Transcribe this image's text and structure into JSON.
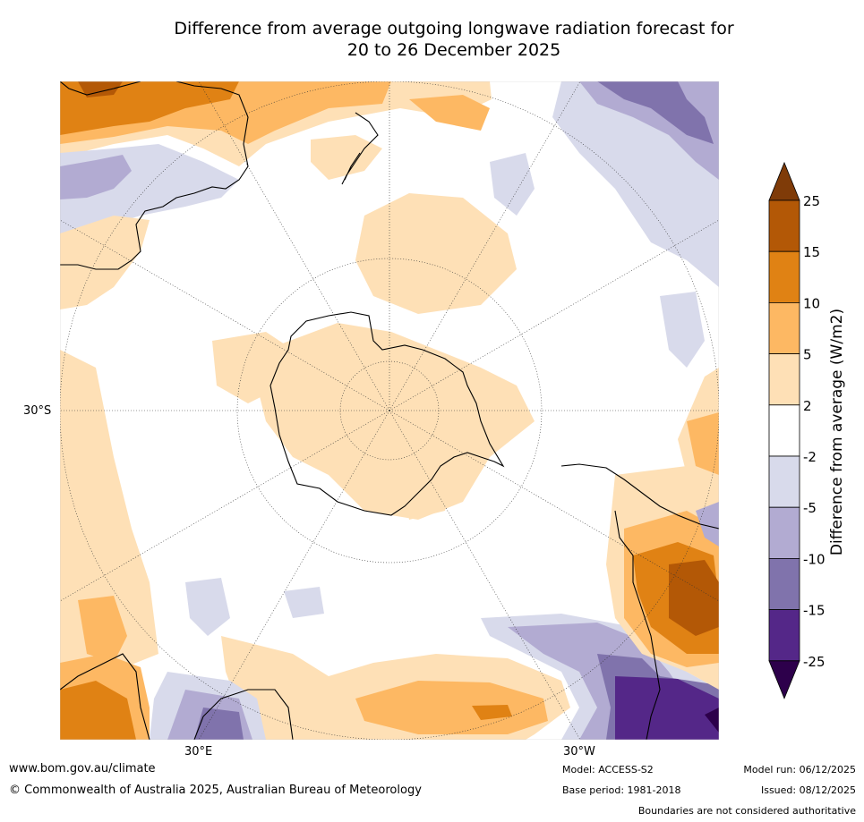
{
  "title": {
    "line1": "Difference from average outgoing longwave radiation forecast for",
    "line2": "20 to 26 December 2025"
  },
  "map": {
    "projection": "south-polar-stereographic",
    "lat_label": "30°S",
    "lon_labels": [
      "30°E",
      "30°W"
    ]
  },
  "colorbar": {
    "label": "Difference from average (W/m2)",
    "ticks": [
      "25",
      "15",
      "10",
      "5",
      "2",
      "-2",
      "-5",
      "-10",
      "-15",
      "-25"
    ],
    "colors": {
      "above_25": "#7f3b08",
      "15_25": "#b35806",
      "10_15": "#e08214",
      "5_10": "#fdb863",
      "2_5": "#fee0b6",
      "-2_2": "#ffffff",
      "-5_-2": "#d8daeb",
      "-10_-5": "#b2abd2",
      "-15_-10": "#8073ac",
      "-25_-15": "#542788",
      "below_-25": "#2d004b"
    }
  },
  "footer": {
    "website": "www.bom.gov.au/climate",
    "copyright": "© Commonwealth of Australia 2025, Australian Bureau of Meteorology",
    "model": "Model: ACCESS-S2",
    "base_period": "Base period: 1981-2018",
    "model_run": "Model run: 06/12/2025",
    "issued": "Issued: 08/12/2025",
    "disclaimer": "Boundaries are not considered authoritative"
  }
}
